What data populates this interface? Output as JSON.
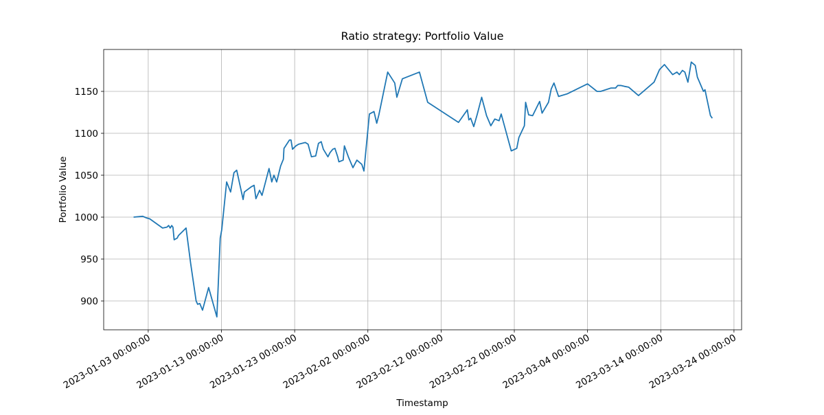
{
  "chart_data": {
    "type": "line",
    "title": "Ratio strategy: Portfolio Value",
    "x_label": "Timestamp",
    "y_label": "Portfolio Value",
    "grid": true,
    "xlim": [
      "2022-12-27 22:00",
      "2023-03-25 01:00"
    ],
    "xticks": [
      "2023-01-03 00:00:00",
      "2023-01-13 00:00:00",
      "2023-01-23 00:00:00",
      "2023-02-02 00:00:00",
      "2023-02-12 00:00:00",
      "2023-02-22 00:00:00",
      "2023-03-04 00:00:00",
      "2023-03-14 00:00:00",
      "2023-03-24 00:00:00"
    ],
    "ylim": [
      865.6,
      1200
    ],
    "yticks": [
      900,
      950,
      1000,
      1050,
      1100,
      1150
    ],
    "x": [
      "2023-01-01 00:00",
      "2023-01-02 06:00",
      "2023-01-02 19:00",
      "2023-01-03 05:00",
      "2023-01-04 23:00",
      "2023-01-05 13:00",
      "2023-01-05 19:00",
      "2023-01-06 00:00",
      "2023-01-06 05:00",
      "2023-01-06 09:00",
      "2023-01-06 13:00",
      "2023-01-06 23:00",
      "2023-01-07 03:00",
      "2023-01-08 04:00",
      "2023-01-08 19:00",
      "2023-01-09 13:00",
      "2023-01-09 18:00",
      "2023-01-10 01:00",
      "2023-01-10 10:00",
      "2023-01-11 06:00",
      "2023-01-12 09:00",
      "2023-01-12 20:00",
      "2023-01-13 01:00",
      "2023-01-13 17:00",
      "2023-01-14 06:00",
      "2023-01-14 17:00",
      "2023-01-15 02:00",
      "2023-01-15 23:00",
      "2023-01-16 03:00",
      "2023-01-17 01:00",
      "2023-01-17 11:00",
      "2023-01-17 17:00",
      "2023-01-18 05:00",
      "2023-01-18 13:00",
      "2023-01-19 12:00",
      "2023-01-19 21:00",
      "2023-01-20 04:00",
      "2023-01-20 13:00",
      "2023-01-21 02:00",
      "2023-01-21 11:00",
      "2023-01-21 13:00",
      "2023-01-22 07:00",
      "2023-01-22 12:00",
      "2023-01-22 17:00",
      "2023-01-23 04:00",
      "2023-01-23 13:00",
      "2023-01-24 11:00",
      "2023-01-24 20:00",
      "2023-01-25 07:00",
      "2023-01-25 21:00",
      "2023-01-26 06:00",
      "2023-01-26 15:00",
      "2023-01-26 22:00",
      "2023-01-27 13:00",
      "2023-01-27 20:00",
      "2023-01-28 05:00",
      "2023-01-28 12:00",
      "2023-01-28 21:00",
      "2023-01-29 01:00",
      "2023-01-29 15:00",
      "2023-01-29 19:00",
      "2023-01-30 09:00",
      "2023-01-30 23:00",
      "2023-01-31 12:00",
      "2023-02-01 04:00",
      "2023-02-01 11:00",
      "2023-02-02 05:00",
      "2023-02-02 20:00",
      "2023-02-03 05:00",
      "2023-02-03 12:00",
      "2023-02-04 17:00",
      "2023-02-05 16:00",
      "2023-02-05 23:00",
      "2023-02-06 17:00",
      "2023-02-09 01:00",
      "2023-02-10 04:00",
      "2023-02-14 09:00",
      "2023-02-15 14:00",
      "2023-02-15 19:00",
      "2023-02-16 01:00",
      "2023-02-16 11:00",
      "2023-02-16 22:00",
      "2023-02-17 13:00",
      "2023-02-18 05:00",
      "2023-02-18 19:00",
      "2023-02-19 08:00",
      "2023-02-19 22:00",
      "2023-02-20 05:00",
      "2023-02-21 14:00",
      "2023-02-22 08:00",
      "2023-02-22 15:00",
      "2023-02-23 09:00",
      "2023-02-23 13:00",
      "2023-02-23 23:00",
      "2023-02-24 12:00",
      "2023-02-25 11:00",
      "2023-02-25 19:00",
      "2023-02-26 16:00",
      "2023-02-27 01:00",
      "2023-02-27 10:00",
      "2023-02-28 01:00",
      "2023-03-01 05:00",
      "2023-03-04 00:00",
      "2023-03-05 07:00",
      "2023-03-05 19:00",
      "2023-03-07 05:00",
      "2023-03-07 20:00",
      "2023-03-08 03:00",
      "2023-03-08 14:00",
      "2023-03-09 01:00",
      "2023-03-09 15:00",
      "2023-03-10 23:00",
      "2023-03-13 02:00",
      "2023-03-13 20:00",
      "2023-03-14 12:00",
      "2023-03-15 15:00",
      "2023-03-16 05:00",
      "2023-03-16 13:00",
      "2023-03-16 23:00",
      "2023-03-17 07:00",
      "2023-03-17 17:00",
      "2023-03-18 04:00",
      "2023-03-18 17:00",
      "2023-03-19 00:00",
      "2023-03-19 20:00",
      "2023-03-20 01:00",
      "2023-03-20 05:00",
      "2023-03-20 19:00",
      "2023-03-21 01:00"
    ],
    "series": [
      {
        "color": "#1f77b4",
        "values": [
          1000,
          1001,
          999,
          998,
          987,
          988,
          990,
          987,
          990,
          988,
          973,
          975,
          978,
          987,
          945,
          900,
          896,
          897,
          889,
          916,
          881,
          975,
          985,
          1042,
          1030,
          1053,
          1056,
          1021,
          1030,
          1036,
          1038,
          1022,
          1032,
          1026,
          1058,
          1042,
          1050,
          1042,
          1061,
          1069,
          1082,
          1092,
          1092,
          1081,
          1085,
          1087,
          1089,
          1087,
          1072,
          1073,
          1088,
          1090,
          1081,
          1072,
          1077,
          1081,
          1082,
          1072,
          1066,
          1068,
          1085,
          1071,
          1059,
          1068,
          1063,
          1055,
          1123,
          1126,
          1112,
          1122,
          1173,
          1160,
          1143,
          1165,
          1173,
          1137,
          1113,
          1128,
          1116,
          1118,
          1108,
          1122,
          1143,
          1121,
          1109,
          1117,
          1115,
          1123,
          1079,
          1082,
          1095,
          1109,
          1137,
          1122,
          1121,
          1138,
          1124,
          1137,
          1153,
          1160,
          1144,
          1147,
          1159,
          1150,
          1150,
          1154,
          1154,
          1157,
          1157,
          1156,
          1155,
          1145,
          1161,
          1176,
          1182,
          1170,
          1173,
          1170,
          1175,
          1173,
          1161,
          1185,
          1181,
          1167,
          1150,
          1152,
          1145,
          1121,
          1118
        ]
      }
    ]
  }
}
